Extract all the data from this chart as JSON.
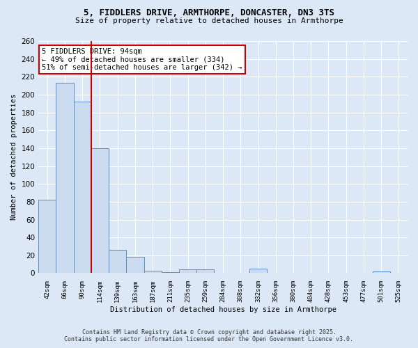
{
  "title_line1": "5, FIDDLERS DRIVE, ARMTHORPE, DONCASTER, DN3 3TS",
  "title_line2": "Size of property relative to detached houses in Armthorpe",
  "xlabel": "Distribution of detached houses by size in Armthorpe",
  "ylabel": "Number of detached properties",
  "categories": [
    "42sqm",
    "66sqm",
    "90sqm",
    "114sqm",
    "139sqm",
    "163sqm",
    "187sqm",
    "211sqm",
    "235sqm",
    "259sqm",
    "284sqm",
    "308sqm",
    "332sqm",
    "356sqm",
    "380sqm",
    "404sqm",
    "428sqm",
    "453sqm",
    "477sqm",
    "501sqm",
    "525sqm"
  ],
  "bar_heights": [
    82,
    213,
    192,
    140,
    26,
    18,
    3,
    1,
    4,
    4,
    0,
    0,
    5,
    0,
    0,
    0,
    0,
    0,
    0,
    2,
    0
  ],
  "bar_color": "#ccdcf0",
  "bar_edge_color": "#5590cc",
  "vline_x_index": 2.5,
  "vline_color": "#cc0000",
  "annotation_text": "5 FIDDLERS DRIVE: 94sqm\n← 49% of detached houses are smaller (334)\n51% of semi-detached houses are larger (342) →",
  "annotation_box_facecolor": "#ffffff",
  "annotation_border_color": "#cc0000",
  "ylim_max": 260,
  "yticks": [
    0,
    20,
    40,
    60,
    80,
    100,
    120,
    140,
    160,
    180,
    200,
    220,
    240,
    260
  ],
  "background_color": "#dce8f5",
  "grid_color": "#ffffff",
  "footer_line1": "Contains HM Land Registry data © Crown copyright and database right 2025.",
  "footer_line2": "Contains public sector information licensed under the Open Government Licence v3.0."
}
